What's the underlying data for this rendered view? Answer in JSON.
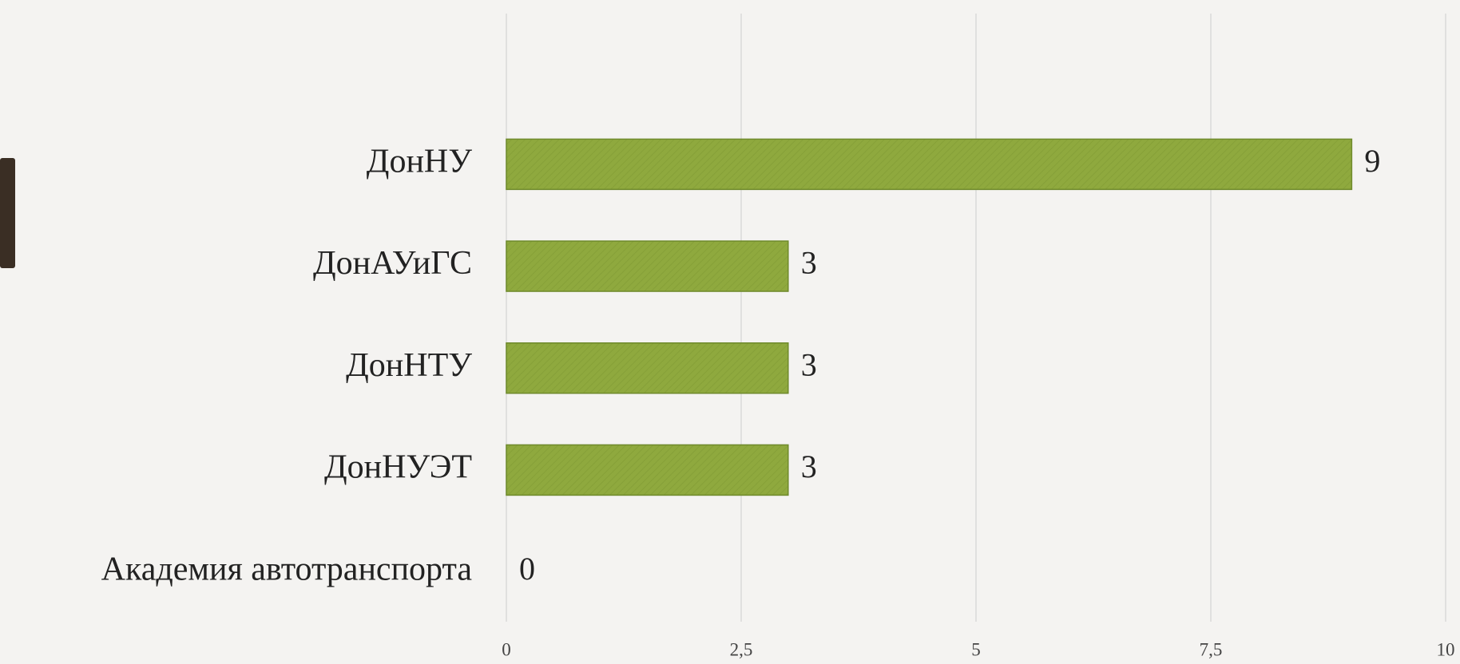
{
  "chart_data": {
    "type": "barh",
    "categories": [
      "ДонНУ",
      "ДонАУиГС",
      "ДонНТУ",
      "ДонНУЭТ",
      "Академия автотранспорта"
    ],
    "values": [
      9,
      3,
      3,
      3,
      0
    ],
    "color": "#8fa93e",
    "xlim": [
      0,
      10
    ],
    "xticks": [
      0,
      {
        "value": 2.5,
        "label": "2,5"
      },
      5,
      {
        "value": 7.5,
        "label": "7,5"
      },
      10
    ],
    "grid": true
  }
}
